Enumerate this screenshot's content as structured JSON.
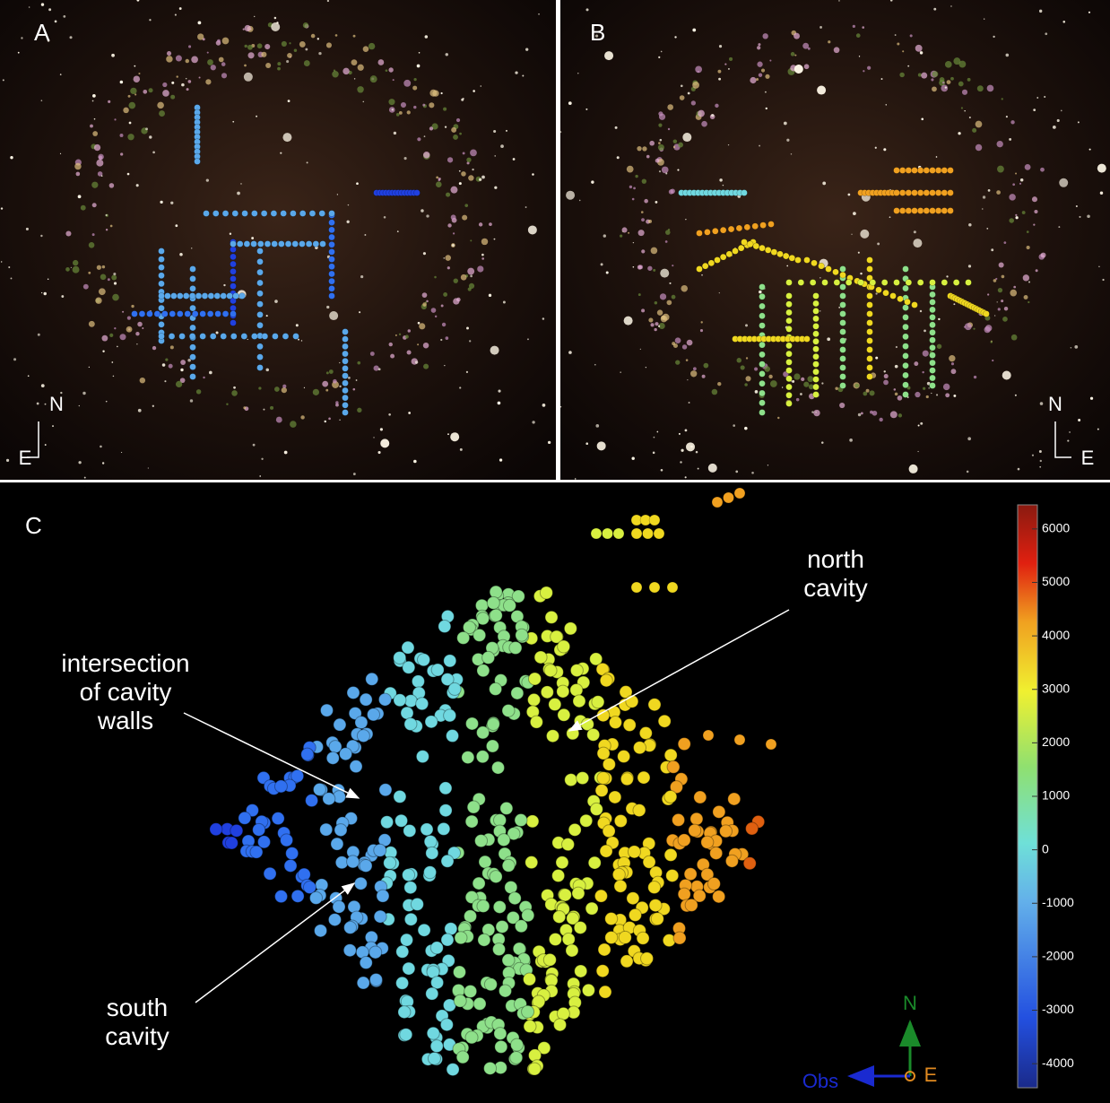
{
  "panels": [
    {
      "label": "A",
      "north": "N",
      "east": "E"
    },
    {
      "label": "B",
      "north": "N",
      "east": "E"
    }
  ],
  "panel_c": {
    "label": "C",
    "annotations": [
      {
        "lines": [
          "north",
          "cavity"
        ]
      },
      {
        "lines": [
          "intersection",
          "of cavity",
          "walls"
        ]
      },
      {
        "lines": [
          "south",
          "cavity"
        ]
      }
    ],
    "axes": {
      "north": "N",
      "east": "E",
      "observer": "Obs"
    }
  },
  "colorbar": {
    "lim": [
      -4450,
      6450
    ],
    "ticks": [
      6000,
      5000,
      4000,
      3000,
      2000,
      1000,
      0,
      -1000,
      -2000,
      -3000,
      -4000
    ]
  }
}
